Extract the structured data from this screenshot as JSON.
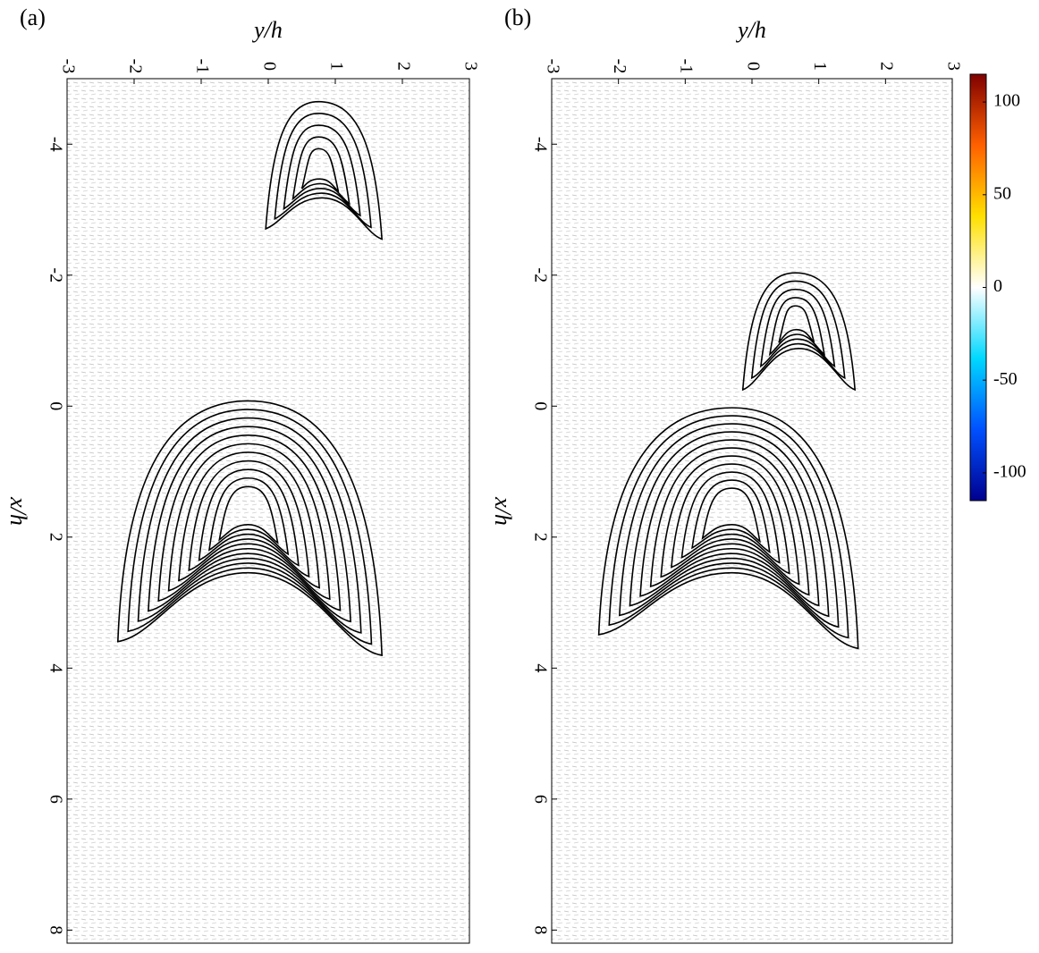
{
  "chart_data": [
    {
      "type": "vector-field",
      "panel_label": "(a)",
      "x_label": "y/h",
      "y_label": "x/h",
      "xlim": [
        -3,
        3
      ],
      "xticks": [
        -3,
        -2,
        -1,
        0,
        1,
        2,
        3
      ],
      "ylim": [
        -5,
        8.2
      ],
      "yticks": [
        -4,
        -2,
        0,
        2,
        4,
        6,
        8
      ]
    },
    {
      "type": "vector-field",
      "panel_label": "(b)",
      "x_label": "y/h",
      "y_label": "x/h",
      "xlim": [
        -3,
        3
      ],
      "xticks": [
        -3,
        -2,
        -1,
        0,
        1,
        2,
        3
      ],
      "ylim": [
        -5,
        8.2
      ],
      "yticks": [
        -4,
        -2,
        0,
        2,
        4,
        6,
        8
      ],
      "colorbar": {
        "lim": [
          -115,
          115
        ],
        "ticks": [
          100,
          50,
          0,
          -50,
          -100
        ],
        "colors": [
          "#00008f",
          "#0050ff",
          "#00d8ff",
          "#ffffff",
          "#ffe000",
          "#ff6000",
          "#800000"
        ]
      }
    }
  ]
}
